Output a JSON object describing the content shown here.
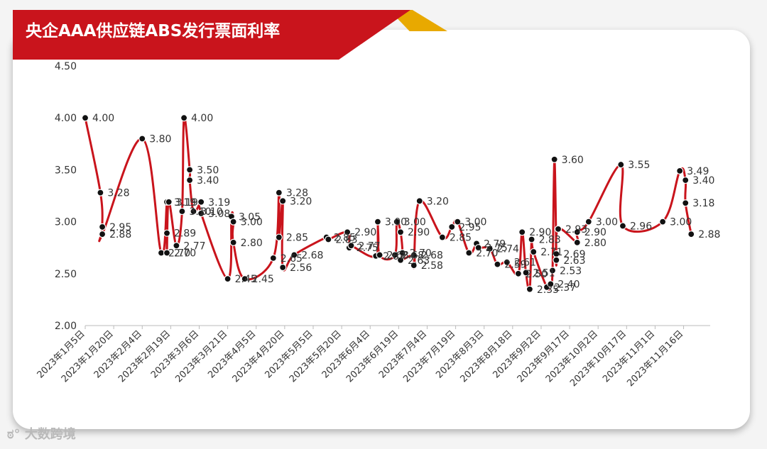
{
  "title": "央企AAA供应链ABS发行票面利率",
  "watermark": "大数跨境",
  "chart_data": {
    "type": "line",
    "title": "央企AAA供应链ABS发行票面利率",
    "xlabel": "",
    "ylabel": "",
    "ylim": [
      2.0,
      4.5
    ],
    "yticks": [
      "2.00",
      "2.50",
      "3.00",
      "3.50",
      "4.00",
      "4.50"
    ],
    "xlim": [
      "2023-01-05",
      "2023-11-30"
    ],
    "xticks": [
      "2023年1月5日",
      "2023年1月20日",
      "2023年2月4日",
      "2023年2月19日",
      "2023年3月6日",
      "2023年3月21日",
      "2023年4月5日",
      "2023年4月20日",
      "2023年5月5日",
      "2023年5月20日",
      "2023年6月4日",
      "2023年6月19日",
      "2023年7月4日",
      "2023年7月19日",
      "2023年8月3日",
      "2023年8月18日",
      "2023年9月2日",
      "2023年9月17日",
      "2023年10月2日",
      "2023年10月17日",
      "2023年11月1日",
      "2023年11月16日"
    ],
    "line_color": "#c9141c",
    "marker_color": "#111111",
    "grid": false,
    "series": [
      {
        "points": [
          {
            "x": "2023-01-05",
            "y": 4.0,
            "label": "4.00"
          },
          {
            "x": "2023-01-13",
            "y": 3.28,
            "label": "3.28"
          },
          {
            "x": "2023-01-14",
            "y": 2.95,
            "label": "2.95"
          },
          {
            "x": "2023-01-14",
            "y": 2.88,
            "label": "2.88"
          },
          {
            "x": "2023-02-04",
            "y": 3.8,
            "label": "3.80"
          },
          {
            "x": "2023-02-14",
            "y": 2.7,
            "label": "2.70"
          },
          {
            "x": "2023-02-17",
            "y": 3.19,
            "label": "3.19"
          },
          {
            "x": "2023-02-17",
            "y": 2.89,
            "label": "2.89"
          },
          {
            "x": "2023-02-17",
            "y": 2.7,
            "label": "2.70"
          },
          {
            "x": "2023-02-18",
            "y": 3.19,
            "label": "3.19"
          },
          {
            "x": "2023-02-22",
            "y": 2.77,
            "label": "2.77"
          },
          {
            "x": "2023-02-25",
            "y": 3.1,
            "label": "3.10"
          },
          {
            "x": "2023-02-26",
            "y": 4.0,
            "label": "4.00"
          },
          {
            "x": "2023-03-01",
            "y": 3.5,
            "label": "3.50"
          },
          {
            "x": "2023-03-01",
            "y": 3.4,
            "label": "3.40"
          },
          {
            "x": "2023-03-03",
            "y": 3.1,
            "label": "3.10"
          },
          {
            "x": "2023-03-07",
            "y": 3.19,
            "label": "3.19"
          },
          {
            "x": "2023-03-07",
            "y": 3.08,
            "label": "3.08"
          },
          {
            "x": "2023-03-21",
            "y": 2.45,
            "label": "2.45"
          },
          {
            "x": "2023-03-23",
            "y": 3.05,
            "label": "3.05"
          },
          {
            "x": "2023-03-24",
            "y": 3.0,
            "label": "3.00"
          },
          {
            "x": "2023-03-24",
            "y": 2.8,
            "label": "2.80"
          },
          {
            "x": "2023-03-30",
            "y": 2.45,
            "label": "2.45"
          },
          {
            "x": "2023-04-14",
            "y": 2.65,
            "label": "2.65"
          },
          {
            "x": "2023-04-17",
            "y": 3.28,
            "label": "3.28"
          },
          {
            "x": "2023-04-17",
            "y": 2.85,
            "label": "2.85"
          },
          {
            "x": "2023-04-19",
            "y": 3.2,
            "label": "3.20"
          },
          {
            "x": "2023-04-19",
            "y": 2.56,
            "label": "2.56"
          },
          {
            "x": "2023-04-25",
            "y": 2.68,
            "label": "2.68"
          },
          {
            "x": "2023-05-12",
            "y": 2.85,
            "label": "2.85"
          },
          {
            "x": "2023-05-13",
            "y": 2.83,
            "label": "2.83"
          },
          {
            "x": "2023-05-23",
            "y": 2.9,
            "label": "2.90"
          },
          {
            "x": "2023-05-24",
            "y": 2.75,
            "label": "2.75"
          },
          {
            "x": "2023-05-25",
            "y": 2.77,
            "label": "2.77"
          },
          {
            "x": "2023-06-07",
            "y": 2.67,
            "label": "2.67"
          },
          {
            "x": "2023-06-08",
            "y": 3.0,
            "label": "3.00"
          },
          {
            "x": "2023-06-09",
            "y": 2.68,
            "label": "2.68"
          },
          {
            "x": "2023-06-17",
            "y": 2.68,
            "label": "2.68"
          },
          {
            "x": "2023-06-18",
            "y": 3.0,
            "label": "3.00"
          },
          {
            "x": "2023-06-20",
            "y": 2.9,
            "label": "2.90"
          },
          {
            "x": "2023-06-21",
            "y": 2.7,
            "label": "2.70"
          },
          {
            "x": "2023-06-20",
            "y": 2.63,
            "label": "2.63"
          },
          {
            "x": "2023-06-27",
            "y": 2.68,
            "label": "2.68"
          },
          {
            "x": "2023-06-27",
            "y": 2.58,
            "label": "2.58"
          },
          {
            "x": "2023-06-30",
            "y": 3.2,
            "label": "3.20"
          },
          {
            "x": "2023-07-12",
            "y": 2.85,
            "label": "2.85"
          },
          {
            "x": "2023-07-17",
            "y": 2.95,
            "label": "2.95"
          },
          {
            "x": "2023-07-20",
            "y": 3.0,
            "label": "3.00"
          },
          {
            "x": "2023-07-26",
            "y": 2.7,
            "label": "2.70"
          },
          {
            "x": "2023-07-30",
            "y": 2.79,
            "label": "2.79"
          },
          {
            "x": "2023-07-31",
            "y": 2.75,
            "label": "2.75"
          },
          {
            "x": "2023-08-06",
            "y": 2.74,
            "label": "2.74"
          },
          {
            "x": "2023-08-10",
            "y": 2.59,
            "label": "2.59"
          },
          {
            "x": "2023-08-15",
            "y": 2.61,
            "label": "2.61"
          },
          {
            "x": "2023-08-21",
            "y": 2.5,
            "label": "2.50"
          },
          {
            "x": "2023-08-23",
            "y": 2.9,
            "label": "2.90"
          },
          {
            "x": "2023-08-25",
            "y": 2.51,
            "label": "2.51"
          },
          {
            "x": "2023-08-27",
            "y": 2.35,
            "label": "2.35"
          },
          {
            "x": "2023-08-28",
            "y": 2.83,
            "label": "2.83"
          },
          {
            "x": "2023-08-29",
            "y": 2.71,
            "label": "2.71"
          },
          {
            "x": "2023-09-05",
            "y": 2.37,
            "label": "2.37"
          },
          {
            "x": "2023-09-07",
            "y": 2.4,
            "label": "2.40"
          },
          {
            "x": "2023-09-08",
            "y": 2.53,
            "label": "2.53"
          },
          {
            "x": "2023-09-09",
            "y": 3.6,
            "label": "3.60"
          },
          {
            "x": "2023-09-10",
            "y": 2.69,
            "label": "2.69"
          },
          {
            "x": "2023-09-10",
            "y": 2.63,
            "label": "2.63"
          },
          {
            "x": "2023-09-11",
            "y": 2.93,
            "label": "2.93"
          },
          {
            "x": "2023-09-21",
            "y": 2.8,
            "label": "2.80"
          },
          {
            "x": "2023-09-21",
            "y": 2.9,
            "label": "2.90"
          },
          {
            "x": "2023-09-27",
            "y": 3.0,
            "label": "3.00"
          },
          {
            "x": "2023-10-14",
            "y": 3.55,
            "label": "3.55"
          },
          {
            "x": "2023-10-15",
            "y": 2.96,
            "label": "2.96"
          },
          {
            "x": "2023-11-05",
            "y": 3.0,
            "label": "3.00"
          },
          {
            "x": "2023-11-14",
            "y": 3.49,
            "label": "3.49"
          },
          {
            "x": "2023-11-17",
            "y": 3.4,
            "label": "3.40"
          },
          {
            "x": "2023-11-17",
            "y": 3.18,
            "label": "3.18"
          },
          {
            "x": "2023-11-20",
            "y": 2.88,
            "label": "2.88"
          }
        ]
      }
    ]
  }
}
